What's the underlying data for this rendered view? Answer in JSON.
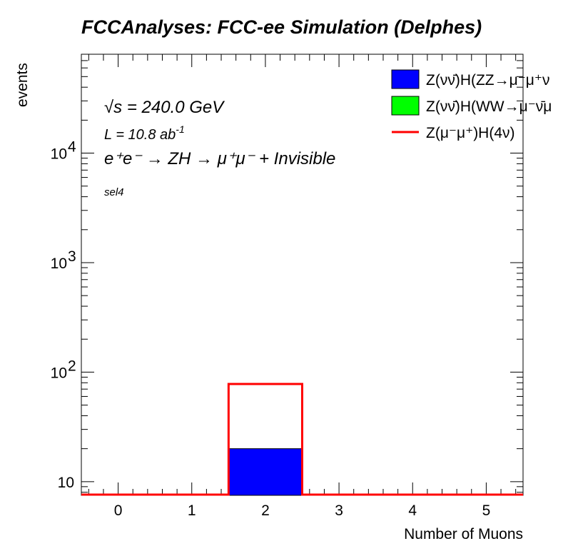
{
  "chart_data": {
    "type": "bar",
    "title": "FCCAnalyses: FCC-ee Simulation (Delphes)",
    "xlabel": "Number of Muons",
    "ylabel": "events",
    "x_tick_labels": [
      "0",
      "1",
      "2",
      "3",
      "4",
      "5"
    ],
    "y_tick_labels": [
      {
        "value": 10,
        "label": "10",
        "exp": ""
      },
      {
        "value": 100,
        "label": "10",
        "exp": "2"
      },
      {
        "value": 1000,
        "label": "10",
        "exp": "3"
      },
      {
        "value": 10000,
        "label": "10",
        "exp": "4"
      }
    ],
    "xlim": [
      -0.5,
      5.5
    ],
    "ylim": [
      7.5,
      80000
    ],
    "yscale": "log",
    "bins": [
      0,
      1,
      2,
      3,
      4,
      5
    ],
    "annotations": {
      "sqrt_s": "√s = 240.0 GeV",
      "lumi": "L = 10.8 ab",
      "lumi_exp": "-1",
      "process": "e⁺e⁻ → ZH → μ⁺μ⁻ + Invisible",
      "selection": "sel4"
    },
    "series": [
      {
        "name": "Z(νν̄)H(ZZ→μ⁻μ⁺ν",
        "style": "filled",
        "color": "#0000ff",
        "values": [
          0,
          0,
          20,
          0,
          0,
          0
        ]
      },
      {
        "name": "Z(νν̄)H(WW→μ⁻ν̄μ",
        "style": "filled",
        "color": "#00ff00",
        "values": [
          0,
          0,
          0,
          0,
          0,
          0
        ]
      },
      {
        "name": "Z(μ⁻μ⁺)H(4ν)",
        "style": "line",
        "color": "#ff0000",
        "values": [
          0,
          0,
          78,
          0,
          0,
          0
        ]
      }
    ]
  }
}
